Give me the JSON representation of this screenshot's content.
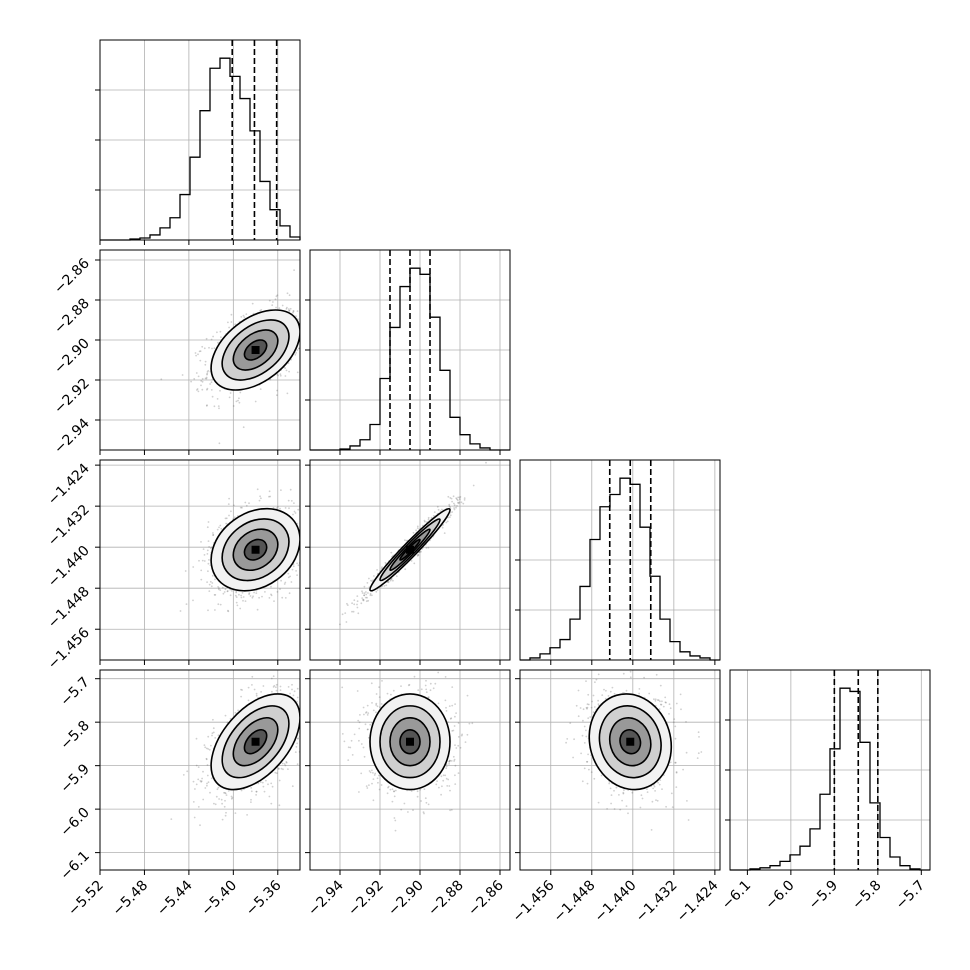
{
  "chart_data": {
    "type": "corner",
    "grid": true,
    "parameters": [
      {
        "index": 0,
        "range": [
          -5.52,
          -5.34
        ],
        "ticks": [
          -5.52,
          -5.48,
          -5.44,
          -5.4,
          -5.36
        ],
        "tick_labels": [
          "−5.52",
          "−5.48",
          "−5.44",
          "−5.40",
          "−5.36"
        ],
        "center": -5.38,
        "sigma": 0.02,
        "quantiles": [
          -5.401,
          -5.381,
          -5.361
        ],
        "histogram": [
          0,
          0,
          0,
          1,
          2,
          5,
          12,
          22,
          45,
          82,
          128,
          170,
          180,
          162,
          140,
          108,
          58,
          30,
          14,
          3
        ]
      },
      {
        "index": 1,
        "range": [
          -2.955,
          -2.855
        ],
        "ticks": [
          -2.94,
          -2.92,
          -2.9,
          -2.88,
          -2.86
        ],
        "tick_labels": [
          "−2.94",
          "−2.92",
          "−2.90",
          "−2.88",
          "−2.86"
        ],
        "center": -2.905,
        "sigma": 0.01,
        "quantiles": [
          -2.915,
          -2.905,
          -2.895
        ],
        "histogram": [
          0,
          0,
          0,
          1,
          4,
          10,
          25,
          70,
          120,
          160,
          178,
          172,
          130,
          78,
          32,
          15,
          6,
          2,
          0,
          0
        ]
      },
      {
        "index": 2,
        "range": [
          -1.462,
          -1.423
        ],
        "ticks": [
          -1.456,
          -1.448,
          -1.44,
          -1.432,
          -1.424
        ],
        "tick_labels": [
          "−1.456",
          "−1.448",
          "−1.440",
          "−1.432",
          "−1.424"
        ],
        "center": -1.4405,
        "sigma": 0.004,
        "quantiles": [
          -1.4445,
          -1.4405,
          -1.4365
        ],
        "histogram": [
          0,
          2,
          6,
          12,
          20,
          40,
          72,
          118,
          150,
          162,
          178,
          172,
          130,
          82,
          40,
          18,
          8,
          4,
          2,
          0
        ]
      },
      {
        "index": 3,
        "range": [
          -6.14,
          -5.68
        ],
        "ticks": [
          -6.1,
          -6.0,
          -5.9,
          -5.8,
          -5.7
        ],
        "tick_labels": [
          "−6.1",
          "−6.0",
          "−5.9",
          "−5.8",
          "−5.7"
        ],
        "center": -5.845,
        "sigma": 0.055,
        "quantiles": [
          -5.9,
          -5.845,
          -5.8
        ],
        "histogram": [
          0,
          0,
          1,
          2,
          4,
          8,
          14,
          22,
          38,
          70,
          112,
          168,
          165,
          118,
          62,
          30,
          12,
          4,
          1,
          0
        ]
      }
    ],
    "correlations": {
      "1_0": 0.45,
      "2_0": 0.25,
      "2_1": 0.97,
      "3_0": 0.5,
      "3_1": 0.0,
      "3_2": -0.1
    }
  }
}
